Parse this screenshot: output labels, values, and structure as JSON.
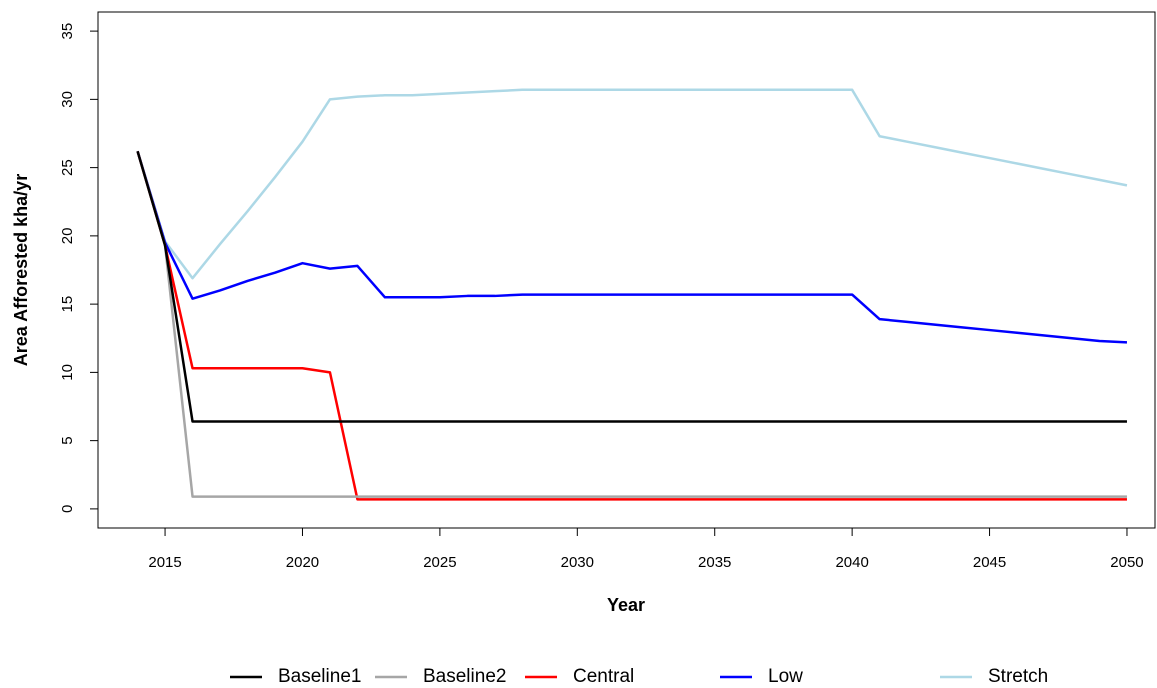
{
  "chart_data": {
    "type": "line",
    "x_label": "Year",
    "y_label": "Area Afforested kha/yr",
    "x": [
      2014,
      2015,
      2016,
      2017,
      2018,
      2019,
      2020,
      2021,
      2022,
      2023,
      2024,
      2025,
      2026,
      2027,
      2028,
      2029,
      2030,
      2031,
      2032,
      2033,
      2034,
      2035,
      2036,
      2037,
      2038,
      2039,
      2040,
      2041,
      2042,
      2043,
      2044,
      2045,
      2046,
      2047,
      2048,
      2049,
      2050
    ],
    "series": [
      {
        "name": "Baseline1",
        "color": "#000000",
        "values": [
          26.2,
          19.3,
          6.4,
          6.4,
          6.4,
          6.4,
          6.4,
          6.4,
          6.4,
          6.4,
          6.4,
          6.4,
          6.4,
          6.4,
          6.4,
          6.4,
          6.4,
          6.4,
          6.4,
          6.4,
          6.4,
          6.4,
          6.4,
          6.4,
          6.4,
          6.4,
          6.4,
          6.4,
          6.4,
          6.4,
          6.4,
          6.4,
          6.4,
          6.4,
          6.4,
          6.4,
          6.4
        ]
      },
      {
        "name": "Baseline2",
        "color": "#a6a6a6",
        "values": [
          26.2,
          19.3,
          0.9,
          0.9,
          0.9,
          0.9,
          0.9,
          0.9,
          0.9,
          0.9,
          0.9,
          0.9,
          0.9,
          0.9,
          0.9,
          0.9,
          0.9,
          0.9,
          0.9,
          0.9,
          0.9,
          0.9,
          0.9,
          0.9,
          0.9,
          0.9,
          0.9,
          0.9,
          0.9,
          0.9,
          0.9,
          0.9,
          0.9,
          0.9,
          0.9,
          0.9,
          0.9
        ]
      },
      {
        "name": "Central",
        "color": "#ff0000",
        "values": [
          26.2,
          19.3,
          10.3,
          10.3,
          10.3,
          10.3,
          10.3,
          10.0,
          0.7,
          0.7,
          0.7,
          0.7,
          0.7,
          0.7,
          0.7,
          0.7,
          0.7,
          0.7,
          0.7,
          0.7,
          0.7,
          0.7,
          0.7,
          0.7,
          0.7,
          0.7,
          0.7,
          0.7,
          0.7,
          0.7,
          0.7,
          0.7,
          0.7,
          0.7,
          0.7,
          0.7,
          0.7
        ]
      },
      {
        "name": "Low",
        "color": "#0000ff",
        "values": [
          26.2,
          19.5,
          15.4,
          16.0,
          16.7,
          17.3,
          18.0,
          17.6,
          17.8,
          15.5,
          15.5,
          15.5,
          15.6,
          15.6,
          15.7,
          15.7,
          15.7,
          15.7,
          15.7,
          15.7,
          15.7,
          15.7,
          15.7,
          15.7,
          15.7,
          15.7,
          15.7,
          13.9,
          13.7,
          13.5,
          13.3,
          13.1,
          12.9,
          12.7,
          12.5,
          12.3,
          12.2
        ]
      },
      {
        "name": "Stretch",
        "color": "#add8e6",
        "values": [
          26.2,
          19.6,
          16.9,
          19.4,
          21.8,
          24.3,
          26.9,
          30.0,
          30.2,
          30.3,
          30.3,
          30.4,
          30.5,
          30.6,
          30.7,
          30.7,
          30.7,
          30.7,
          30.7,
          30.7,
          30.7,
          30.7,
          30.7,
          30.7,
          30.7,
          30.7,
          30.7,
          27.3,
          26.9,
          26.5,
          26.1,
          25.7,
          25.3,
          24.9,
          24.5,
          24.1,
          23.7
        ]
      }
    ],
    "xlim": [
      2012.56,
      2051.02
    ],
    "xticks": [
      2015,
      2020,
      2025,
      2030,
      2035,
      2040,
      2045,
      2050
    ],
    "ylim": [
      -1.4,
      36.4
    ],
    "yticks": [
      0,
      5,
      10,
      15,
      20,
      25,
      30,
      35
    ],
    "grid": false,
    "legend": "bottom"
  }
}
